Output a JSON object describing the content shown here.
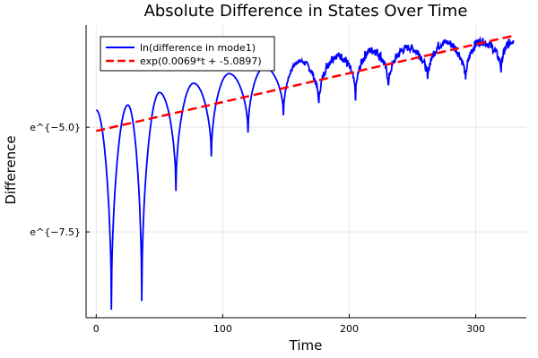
{
  "chart_data": {
    "type": "line",
    "title": "Absolute Difference in States Over Time",
    "xlabel": "Time",
    "ylabel": "Difference",
    "xlim": [
      -8,
      340
    ],
    "ylim": [
      -9.55,
      -2.56
    ],
    "y_scale": "log (natural), ticks shown as exponents",
    "xticks": [
      0,
      100,
      200,
      300
    ],
    "xtick_labels": [
      "0",
      "100",
      "200",
      "300"
    ],
    "yticks": [
      -5.0,
      -7.5
    ],
    "ytick_labels": [
      "e^{−5.0}",
      "e^{−7.5}"
    ],
    "grid": true,
    "legend": "top-left",
    "series": [
      {
        "name": "ln(difference in mode1)",
        "color": "#0000ff",
        "style": "solid",
        "extrema_t": [
          0,
          12,
          25,
          36,
          50,
          63,
          77,
          91,
          105,
          120,
          133,
          148,
          161,
          176,
          191,
          205,
          218,
          231,
          247,
          262,
          276,
          292,
          304,
          320,
          330
        ],
        "extrema_ln_y": [
          -4.59,
          -9.36,
          -4.47,
          -9.15,
          -4.17,
          -6.52,
          -3.95,
          -5.7,
          -3.72,
          -5.13,
          -3.57,
          -4.7,
          -3.42,
          -4.47,
          -3.29,
          -4.29,
          -3.16,
          -4.04,
          -3.1,
          -3.89,
          -2.97,
          -3.91,
          -2.95,
          -3.65,
          -2.93
        ]
      },
      {
        "name": "exp(0.0069*t + -5.0897)",
        "color": "#ff0000",
        "style": "dashed",
        "slope": 0.0069,
        "intercept": -5.0897,
        "t_range": [
          0,
          330
        ]
      }
    ]
  }
}
